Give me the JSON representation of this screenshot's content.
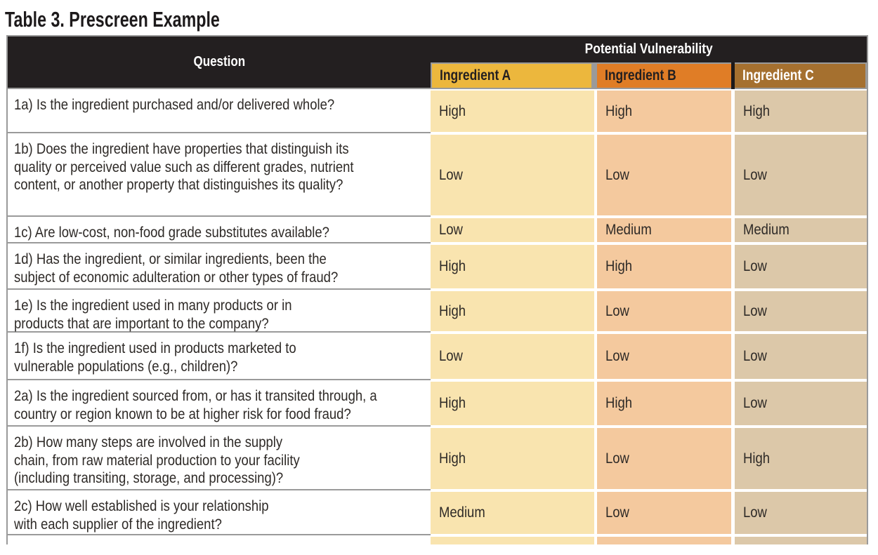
{
  "page_title": "Table 3. Prescreen Example",
  "colors": {
    "header_band": "#231f20",
    "border_gray": "#9a9a9a",
    "text": "#2e2a27"
  },
  "table": {
    "question_header": "Question",
    "group_header": "Potential Vulnerability",
    "ingredients": [
      {
        "label": "Ingredient A",
        "header_bg": "#ecb73d",
        "header_fg": "#231f20",
        "cell_bg": "#f9e4af"
      },
      {
        "label": "Ingredient B",
        "header_bg": "#e07d26",
        "header_fg": "#231f20",
        "cell_bg": "#f4c99e"
      },
      {
        "label": "Ingredient C",
        "header_bg": "#a5702f",
        "header_fg": "#ffffff",
        "cell_bg": "#dcc8a9"
      }
    ],
    "rows": [
      {
        "question": "1a) Is the ingredient purchased and/or delivered whole?",
        "values": [
          "High",
          "High",
          "High"
        ]
      },
      {
        "question": "1b) Does the ingredient have properties that distinguish its\nquality or perceived value such as different grades, nutrient\ncontent, or another property that distinguishes its quality?",
        "values": [
          "Low",
          "Low",
          "Low"
        ]
      },
      {
        "question": "1c) Are low-cost, non-food grade substitutes available?",
        "values": [
          "Low",
          "Medium",
          "Medium"
        ]
      },
      {
        "question": "1d) Has the ingredient, or similar ingredients, been the\nsubject of economic adulteration or other types of fraud?",
        "values": [
          "High",
          "High",
          "Low"
        ]
      },
      {
        "question": "1e) Is the ingredient used in many products or in\nproducts that are important to the company?",
        "values": [
          "High",
          "Low",
          "Low"
        ]
      },
      {
        "question": "1f) Is the ingredient used in products marketed to\nvulnerable populations (e.g., children)?",
        "values": [
          "Low",
          "Low",
          "Low"
        ]
      },
      {
        "question": "2a) Is the ingredient sourced from, or has it transited through, a\ncountry or region known to be at higher risk for food fraud?",
        "values": [
          "High",
          "High",
          "Low"
        ]
      },
      {
        "question": "2b) How many steps are involved in the supply\nchain, from raw material production to your facility\n(including transiting, storage, and processing)?",
        "values": [
          "High",
          "Low",
          "High"
        ]
      },
      {
        "question": "2c) How well established is your relationship\nwith each supplier of the ingredient?",
        "values": [
          "Medium",
          "Low",
          "Low"
        ]
      }
    ]
  }
}
